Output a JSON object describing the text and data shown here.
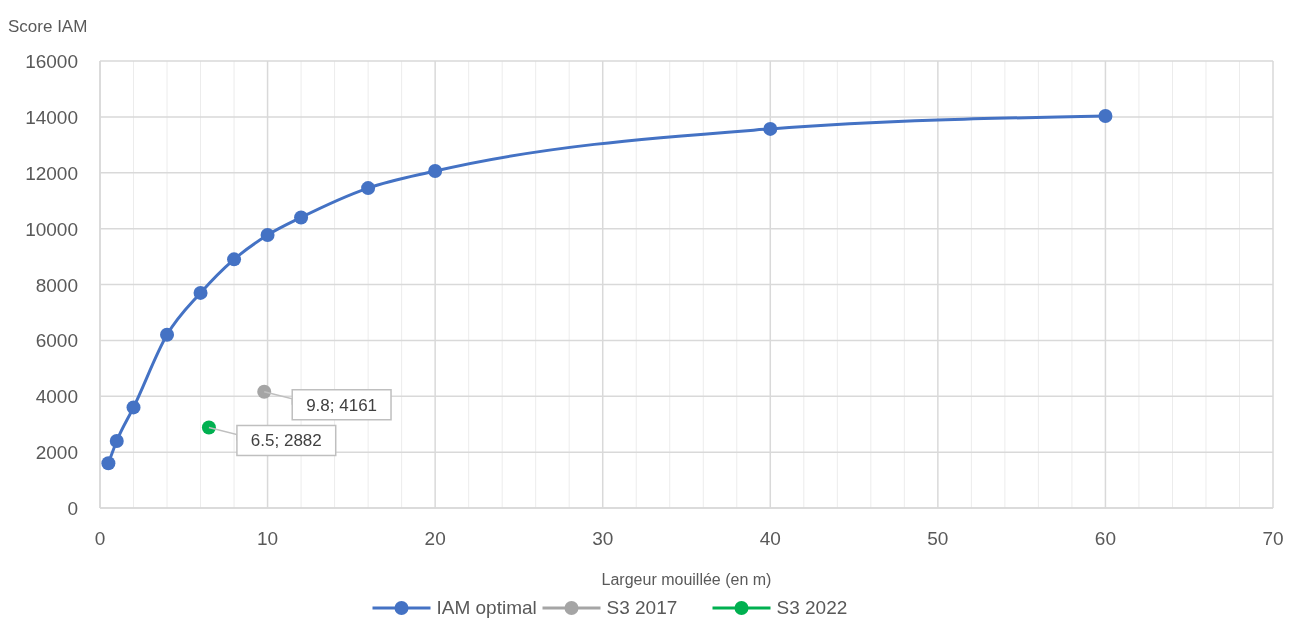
{
  "chart_data": {
    "type": "line",
    "ylabel": "Score IAM",
    "xlabel": "Largeur mouillée (en m)",
    "xlim": [
      0,
      70
    ],
    "xticks": [
      0,
      {
        "value": 2,
        "label": null
      },
      {
        "value": 4,
        "label": null
      },
      {
        "value": 6,
        "label": null
      },
      {
        "value": 8,
        "label": null
      },
      10,
      {
        "value": 12,
        "label": null
      },
      {
        "value": 14,
        "label": null
      },
      {
        "value": 16,
        "label": null
      },
      {
        "value": 18,
        "label": null
      },
      20,
      {
        "value": 22,
        "label": null
      },
      {
        "value": 24,
        "label": null
      },
      {
        "value": 26,
        "label": null
      },
      {
        "value": 28,
        "label": null
      },
      30,
      {
        "value": 32,
        "label": null
      },
      {
        "value": 34,
        "label": null
      },
      {
        "value": 36,
        "label": null
      },
      {
        "value": 38,
        "label": null
      },
      40,
      {
        "value": 42,
        "label": null
      },
      {
        "value": 44,
        "label": null
      },
      {
        "value": 46,
        "label": null
      },
      {
        "value": 48,
        "label": null
      },
      50,
      {
        "value": 52,
        "label": null
      },
      {
        "value": 54,
        "label": null
      },
      {
        "value": 56,
        "label": null
      },
      {
        "value": 58,
        "label": null
      },
      60,
      {
        "value": 62,
        "label": null
      },
      {
        "value": 64,
        "label": null
      },
      {
        "value": 66,
        "label": null
      },
      {
        "value": 68,
        "label": null
      },
      70
    ],
    "ylim": [
      0,
      16000
    ],
    "yticks": [
      0,
      2000,
      4000,
      6000,
      8000,
      10000,
      12000,
      14000,
      16000
    ],
    "grid": true,
    "legend": "bottom",
    "marker": "circle",
    "line_style": "solid",
    "series": [
      {
        "name": "IAM optimal",
        "color": "#4472c4",
        "x": [
          0.5,
          1,
          2,
          4,
          6,
          8,
          10,
          12,
          16,
          20,
          40,
          60
        ],
        "values": [
          1600,
          2400,
          3600,
          6200,
          7700,
          8900,
          9770,
          10400,
          11450,
          12060,
          13570,
          14030
        ]
      },
      {
        "name": "S3 2017",
        "color": "#a5a5a5",
        "x": [
          9.8
        ],
        "values": [
          4161
        ],
        "value_labels": [
          "9.8; 4161"
        ]
      },
      {
        "name": "S3 2022",
        "color": "#00b050",
        "x": [
          6.5
        ],
        "values": [
          2882
        ],
        "value_labels": [
          "6.5; 2882"
        ]
      }
    ]
  }
}
